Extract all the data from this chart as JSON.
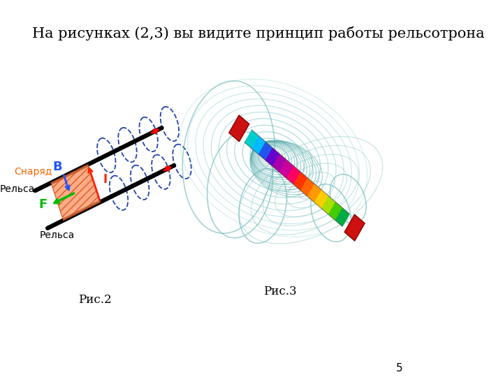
{
  "title": "На рисунках (2,3) вы видите принцип работы рельсотрона",
  "fig2_label": "Рис.2",
  "fig3_label": "Рис.3",
  "page_number": "5",
  "label_snaryad": "Снаряд",
  "label_relsa_top": "Рельса",
  "label_relsa_bot": "Рельса",
  "label_B": "B",
  "label_F": "F",
  "label_I": "I",
  "bg_color": "#ffffff",
  "title_fontsize": 15,
  "caption_fontsize": 12,
  "page_fontsize": 11,
  "rail_colors": [
    "#000000",
    "#000000"
  ],
  "projectile_color": "#FF8C50",
  "arrow_I_color": "#FF2200",
  "arrow_F_color": "#00BB00",
  "arrow_B_color": "#2255FF",
  "loop_color": "#2244AA",
  "snaryad_color": "#FF6600"
}
